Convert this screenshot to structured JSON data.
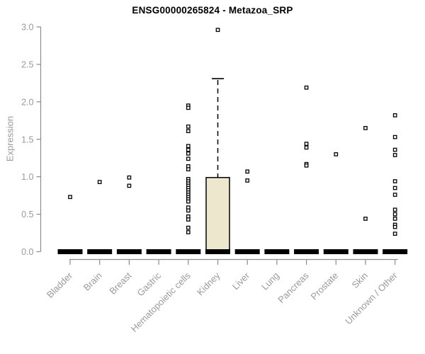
{
  "chart_data": {
    "type": "boxplot",
    "title": "ENSG00000265824 - Metazoa_SRP",
    "ylabel": "Expression",
    "xlabel": "",
    "ylim": [
      0,
      3.0
    ],
    "ytick_labels": [
      "0.0",
      "0.5",
      "1.0",
      "1.5",
      "2.0",
      "2.5",
      "3.0"
    ],
    "grid": "off",
    "legend": "none",
    "categories": [
      "Bladder",
      "Brain",
      "Breast",
      "Gastric",
      "Hematopoietic cells",
      "Kidney",
      "Liver",
      "Lung",
      "Pancreas",
      "Prostate",
      "Skin",
      "Unknown / Other"
    ],
    "colors": {
      "box_fill": "#EDE8CD",
      "box_stroke": "#000000",
      "median": "#000000",
      "point_stroke": "#000000",
      "point_fill": "#ffffff",
      "axis": "#8c8c8c",
      "tick_text": "#9a9a9a",
      "title_text": "#000000"
    },
    "boxes": [
      {
        "category": "Bladder",
        "median": 0,
        "q1": 0,
        "q3": 0,
        "whisker_low": 0,
        "whisker_high": 0,
        "points": [
          0.73
        ]
      },
      {
        "category": "Brain",
        "median": 0,
        "q1": 0,
        "q3": 0,
        "whisker_low": 0,
        "whisker_high": 0,
        "points": [
          0.93
        ]
      },
      {
        "category": "Breast",
        "median": 0,
        "q1": 0,
        "q3": 0,
        "whisker_low": 0,
        "whisker_high": 0,
        "points": [
          0.99,
          0.88
        ]
      },
      {
        "category": "Gastric",
        "median": 0,
        "q1": 0,
        "q3": 0,
        "whisker_low": 0,
        "whisker_high": 0,
        "points": []
      },
      {
        "category": "Hematopoietic cells",
        "median": 0,
        "q1": 0,
        "q3": 0,
        "whisker_low": 0,
        "whisker_high": 0,
        "points": [
          1.95,
          1.92,
          1.67,
          1.61,
          1.41,
          1.36,
          1.31,
          1.24,
          1.14,
          1.1,
          0.97,
          0.94,
          0.91,
          0.88,
          0.85,
          0.82,
          0.79,
          0.76,
          0.73,
          0.7,
          0.67,
          0.59,
          0.55,
          0.47,
          0.43,
          0.32,
          0.26
        ]
      },
      {
        "category": "Kidney",
        "median": 0,
        "q1": 0,
        "q3": 0.99,
        "whisker_low": 0,
        "whisker_high": 2.31,
        "points": [
          2.96
        ]
      },
      {
        "category": "Liver",
        "median": 0,
        "q1": 0,
        "q3": 0,
        "whisker_low": 0,
        "whisker_high": 0,
        "points": [
          1.07,
          0.95
        ]
      },
      {
        "category": "Lung",
        "median": 0,
        "q1": 0,
        "q3": 0,
        "whisker_low": 0,
        "whisker_high": 0,
        "points": []
      },
      {
        "category": "Pancreas",
        "median": 0,
        "q1": 0,
        "q3": 0,
        "whisker_low": 0,
        "whisker_high": 0,
        "points": [
          2.19,
          1.44,
          1.39,
          1.17,
          1.15
        ]
      },
      {
        "category": "Prostate",
        "median": 0,
        "q1": 0,
        "q3": 0,
        "whisker_low": 0,
        "whisker_high": 0,
        "points": [
          1.3
        ]
      },
      {
        "category": "Skin",
        "median": 0,
        "q1": 0,
        "q3": 0,
        "whisker_low": 0,
        "whisker_high": 0,
        "points": [
          1.65,
          0.44
        ]
      },
      {
        "category": "Unknown / Other",
        "median": 0,
        "q1": 0,
        "q3": 0,
        "whisker_low": 0,
        "whisker_high": 0,
        "points": [
          1.82,
          1.53,
          1.36,
          1.29,
          0.94,
          0.85,
          0.76,
          0.56,
          0.5,
          0.44,
          0.36,
          0.33,
          0.24
        ]
      }
    ]
  }
}
